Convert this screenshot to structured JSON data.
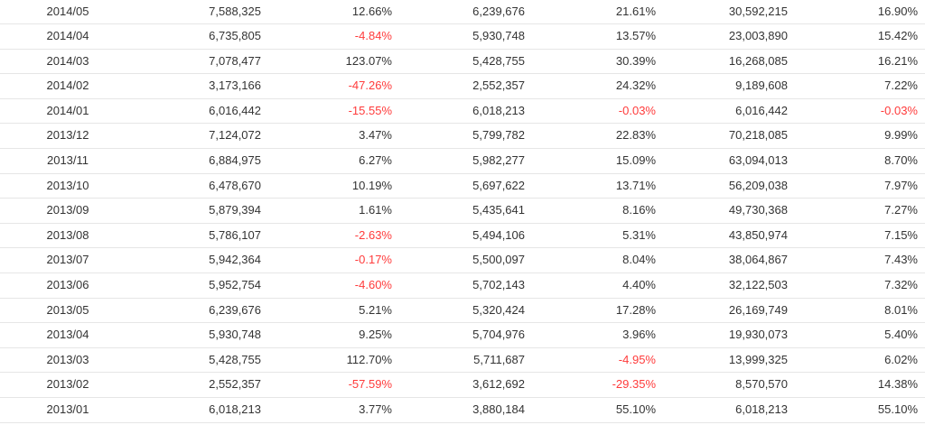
{
  "colors": {
    "text": "#333333",
    "negative": "#ff3b3b",
    "border": "#e6e6e6"
  },
  "rows": [
    {
      "period": "2014/05",
      "v1": "7,588,325",
      "p1": "12.66%",
      "v2": "6,239,676",
      "p2": "21.61%",
      "v3": "30,592,215",
      "p3": "16.90%"
    },
    {
      "period": "2014/04",
      "v1": "6,735,805",
      "p1": "-4.84%",
      "v2": "5,930,748",
      "p2": "13.57%",
      "v3": "23,003,890",
      "p3": "15.42%"
    },
    {
      "period": "2014/03",
      "v1": "7,078,477",
      "p1": "123.07%",
      "v2": "5,428,755",
      "p2": "30.39%",
      "v3": "16,268,085",
      "p3": "16.21%"
    },
    {
      "period": "2014/02",
      "v1": "3,173,166",
      "p1": "-47.26%",
      "v2": "2,552,357",
      "p2": "24.32%",
      "v3": "9,189,608",
      "p3": "7.22%"
    },
    {
      "period": "2014/01",
      "v1": "6,016,442",
      "p1": "-15.55%",
      "v2": "6,018,213",
      "p2": "-0.03%",
      "v3": "6,016,442",
      "p3": "-0.03%"
    },
    {
      "period": "2013/12",
      "v1": "7,124,072",
      "p1": "3.47%",
      "v2": "5,799,782",
      "p2": "22.83%",
      "v3": "70,218,085",
      "p3": "9.99%"
    },
    {
      "period": "2013/11",
      "v1": "6,884,975",
      "p1": "6.27%",
      "v2": "5,982,277",
      "p2": "15.09%",
      "v3": "63,094,013",
      "p3": "8.70%"
    },
    {
      "period": "2013/10",
      "v1": "6,478,670",
      "p1": "10.19%",
      "v2": "5,697,622",
      "p2": "13.71%",
      "v3": "56,209,038",
      "p3": "7.97%"
    },
    {
      "period": "2013/09",
      "v1": "5,879,394",
      "p1": "1.61%",
      "v2": "5,435,641",
      "p2": "8.16%",
      "v3": "49,730,368",
      "p3": "7.27%"
    },
    {
      "period": "2013/08",
      "v1": "5,786,107",
      "p1": "-2.63%",
      "v2": "5,494,106",
      "p2": "5.31%",
      "v3": "43,850,974",
      "p3": "7.15%"
    },
    {
      "period": "2013/07",
      "v1": "5,942,364",
      "p1": "-0.17%",
      "v2": "5,500,097",
      "p2": "8.04%",
      "v3": "38,064,867",
      "p3": "7.43%"
    },
    {
      "period": "2013/06",
      "v1": "5,952,754",
      "p1": "-4.60%",
      "v2": "5,702,143",
      "p2": "4.40%",
      "v3": "32,122,503",
      "p3": "7.32%"
    },
    {
      "period": "2013/05",
      "v1": "6,239,676",
      "p1": "5.21%",
      "v2": "5,320,424",
      "p2": "17.28%",
      "v3": "26,169,749",
      "p3": "8.01%"
    },
    {
      "period": "2013/04",
      "v1": "5,930,748",
      "p1": "9.25%",
      "v2": "5,704,976",
      "p2": "3.96%",
      "v3": "19,930,073",
      "p3": "5.40%"
    },
    {
      "period": "2013/03",
      "v1": "5,428,755",
      "p1": "112.70%",
      "v2": "5,711,687",
      "p2": "-4.95%",
      "v3": "13,999,325",
      "p3": "6.02%"
    },
    {
      "period": "2013/02",
      "v1": "2,552,357",
      "p1": "-57.59%",
      "v2": "3,612,692",
      "p2": "-29.35%",
      "v3": "8,570,570",
      "p3": "14.38%"
    },
    {
      "period": "2013/01",
      "v1": "6,018,213",
      "p1": "3.77%",
      "v2": "3,880,184",
      "p2": "55.10%",
      "v3": "6,018,213",
      "p3": "55.10%"
    }
  ]
}
